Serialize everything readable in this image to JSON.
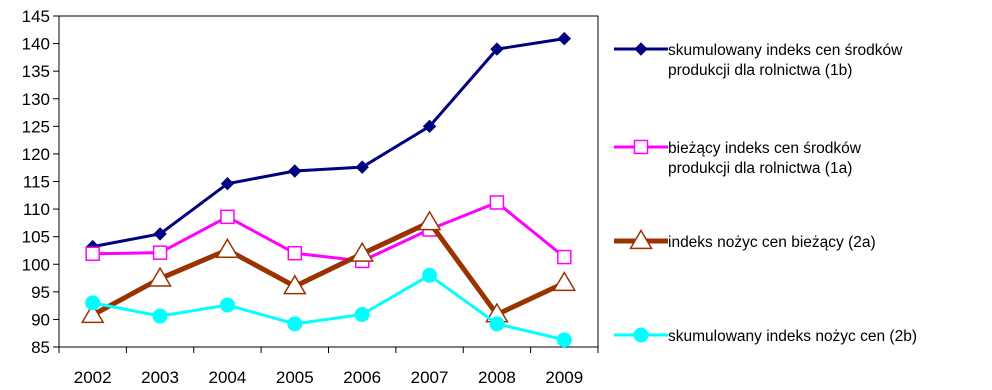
{
  "chart_data": {
    "type": "line",
    "title": "",
    "xlabel": "",
    "ylabel": "",
    "categories": [
      "2002",
      "2003",
      "2004",
      "2005",
      "2006",
      "2007",
      "2008",
      "2009"
    ],
    "ylim": [
      85,
      145
    ],
    "yticks": [
      85,
      90,
      95,
      100,
      105,
      110,
      115,
      120,
      125,
      130,
      135,
      140,
      145
    ],
    "grid": false,
    "legend_position": "right",
    "series": [
      {
        "name": "skumulowany indeks cen środków produkcji dla rolnictwa (1b)",
        "legend_lines": [
          "skumulowany indeks cen środków",
          "produkcji dla rolnictwa (1b)"
        ],
        "color": "#000080",
        "marker": "diamond",
        "values": [
          103.2,
          105.5,
          114.6,
          116.9,
          117.6,
          125.0,
          139.0,
          140.9
        ]
      },
      {
        "name": "bieżący indeks cen środków produkcji dla rolnictwa (1a)",
        "legend_lines": [
          "bieżący indeks cen środków",
          "produkcji dla rolnictwa (1a)"
        ],
        "color": "#ff00ff",
        "marker": "square-open",
        "values": [
          101.9,
          102.1,
          108.6,
          102.0,
          100.6,
          106.3,
          111.2,
          101.3
        ]
      },
      {
        "name": "indeks nożyc cen bieżący (2a)",
        "legend_lines": [
          "indeks nożyc cen bieżący (2a)"
        ],
        "color": "#993300",
        "marker": "triangle-open",
        "values": [
          90.8,
          97.4,
          102.6,
          96.0,
          101.9,
          107.6,
          90.9,
          96.6
        ]
      },
      {
        "name": "skumulowany indeks nożyc cen (2b)",
        "legend_lines": [
          "skumulowany indeks nożyc cen (2b)"
        ],
        "color": "#00ffff",
        "marker": "circle",
        "values": [
          93.0,
          90.6,
          92.6,
          89.2,
          90.9,
          98.0,
          89.2,
          86.3
        ]
      }
    ]
  }
}
